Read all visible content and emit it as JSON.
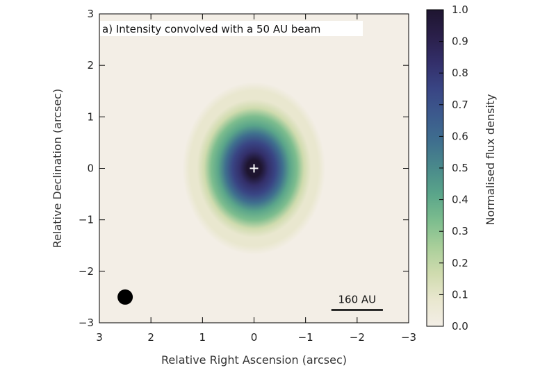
{
  "chart_data": {
    "type": "heatmap",
    "title": "a) Intensity convolved with a 50 AU beam",
    "xlabel": "Relative Right Ascension (arcsec)",
    "ylabel": "Relative Declination (arcsec)",
    "xlim": [
      3,
      -3
    ],
    "ylim": [
      -3,
      3
    ],
    "x_ticks": [
      3,
      2,
      1,
      0,
      -1,
      -2,
      -3
    ],
    "y_ticks": [
      -3,
      -2,
      -1,
      0,
      1,
      2,
      3
    ],
    "x_tick_labels": [
      "3",
      "2",
      "1",
      "0",
      "−1",
      "−2",
      "−3"
    ],
    "y_tick_labels": [
      "−3",
      "−2",
      "−1",
      "0",
      "1",
      "2",
      "3"
    ],
    "source": {
      "center": [
        0,
        0
      ],
      "peak_normalised_flux": 1.0,
      "half_width_ra_arcsec": 0.95,
      "half_width_dec_arcsec": 1.15,
      "marker": "+"
    },
    "beam": {
      "center": [
        2.5,
        -2.5
      ],
      "diameter_au": 50
    },
    "scalebar": {
      "label": "160 AU",
      "from_ra": -1.5,
      "to_ra": -2.5,
      "dec": -2.75
    },
    "colorbar": {
      "label": "Normalised flux density",
      "range": [
        0.0,
        1.0
      ],
      "ticks": [
        0.0,
        0.1,
        0.2,
        0.3,
        0.4,
        0.5,
        0.6,
        0.7,
        0.8,
        0.9,
        1.0
      ],
      "tick_labels": [
        "0.0",
        "0.1",
        "0.2",
        "0.3",
        "0.4",
        "0.5",
        "0.6",
        "0.7",
        "0.8",
        "0.9",
        "1.0"
      ],
      "colormap": [
        "#f3eee6",
        "#e9e7cf",
        "#cfdbae",
        "#a9cf9a",
        "#7dbd8e",
        "#5aa58a",
        "#4a8a8b",
        "#3f6f8e",
        "#3c5a8d",
        "#394584",
        "#332f6a",
        "#2a1f49",
        "#1e1530"
      ]
    }
  }
}
